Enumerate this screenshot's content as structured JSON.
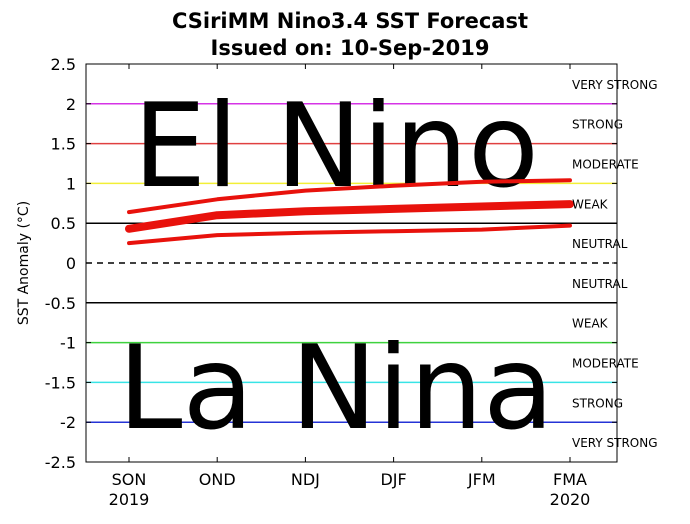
{
  "chart_data": {
    "type": "line",
    "title": "CSiriMM Nino3.4 SST Forecast",
    "subtitle": "Issued on: 10-Sep-2019",
    "ylabel": "SST Anomaly (°C)",
    "ylim": [
      -2.5,
      2.5
    ],
    "yticks": [
      "2.5",
      "2",
      "1.5",
      "1",
      "0.5",
      "0",
      "-0.5",
      "-1",
      "-1.5",
      "-2",
      "-2.5"
    ],
    "categories": [
      "SON",
      "OND",
      "NDJ",
      "DJF",
      "JFM",
      "FMA"
    ],
    "category_years": [
      "2019",
      "",
      "",
      "",
      "",
      "2020"
    ],
    "series": [
      {
        "role": "mean",
        "values": [
          0.43,
          0.6,
          0.65,
          0.68,
          0.71,
          0.74
        ]
      },
      {
        "role": "upper",
        "values": [
          0.64,
          0.8,
          0.91,
          0.97,
          1.02,
          1.04
        ]
      },
      {
        "role": "lower",
        "values": [
          0.25,
          0.35,
          0.38,
          0.4,
          0.42,
          0.47
        ]
      }
    ],
    "threshold_lines": [
      {
        "y": 2.0,
        "color": "#d633e6",
        "style": "solid"
      },
      {
        "y": 1.5,
        "color": "#e04040",
        "style": "solid"
      },
      {
        "y": 1.0,
        "color": "#f2ef36",
        "style": "solid"
      },
      {
        "y": 0.5,
        "color": "#000000",
        "style": "solid"
      },
      {
        "y": 0.0,
        "color": "#000000",
        "style": "dashed"
      },
      {
        "y": -0.5,
        "color": "#000000",
        "style": "solid"
      },
      {
        "y": -1.0,
        "color": "#3ed23e",
        "style": "solid"
      },
      {
        "y": -1.5,
        "color": "#38e4e6",
        "style": "solid"
      },
      {
        "y": -2.0,
        "color": "#2533d6",
        "style": "solid"
      }
    ],
    "category_labels": [
      {
        "text": "VERY STRONG",
        "y": 2.25
      },
      {
        "text": "STRONG",
        "y": 1.75
      },
      {
        "text": "MODERATE",
        "y": 1.25
      },
      {
        "text": "WEAK",
        "y": 0.75
      },
      {
        "text": "NEUTRAL",
        "y": 0.25
      },
      {
        "text": "NEUTRAL",
        "y": -0.25
      },
      {
        "text": "WEAK",
        "y": -0.75
      },
      {
        "text": "MODERATE",
        "y": -1.25
      },
      {
        "text": "STRONG",
        "y": -1.75
      },
      {
        "text": "VERY STRONG",
        "y": -2.25
      }
    ],
    "overlay_text": [
      "El Nino",
      "La Nina"
    ],
    "series_color": "#e8120c",
    "grid": false
  }
}
